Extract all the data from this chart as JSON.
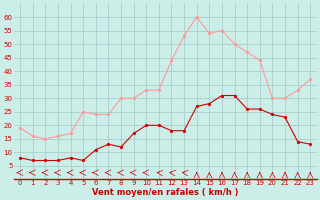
{
  "hours": [
    0,
    1,
    2,
    3,
    4,
    5,
    6,
    7,
    8,
    9,
    10,
    11,
    12,
    13,
    14,
    15,
    16,
    17,
    18,
    19,
    20,
    21,
    22,
    23
  ],
  "wind_avg": [
    8,
    7,
    7,
    7,
    8,
    7,
    11,
    13,
    12,
    17,
    20,
    20,
    18,
    18,
    27,
    28,
    31,
    31,
    26,
    26,
    24,
    23,
    14,
    13
  ],
  "wind_gust": [
    19,
    16,
    15,
    16,
    17,
    25,
    24,
    24,
    30,
    30,
    33,
    33,
    44,
    53,
    60,
    54,
    55,
    50,
    47,
    44,
    30,
    30,
    33,
    37
  ],
  "bg_color": "#cceee8",
  "grid_color": "#aacccc",
  "line_avg_color": "#cc0000",
  "line_gust_color": "#ff9999",
  "marker_size": 2,
  "xlabel": "Vent moyen/en rafales ( km/h )",
  "ylim": [
    0,
    65
  ],
  "yticks": [
    5,
    10,
    15,
    20,
    25,
    30,
    35,
    40,
    45,
    50,
    55,
    60
  ],
  "xlabel_color": "#cc0000",
  "tick_color": "#cc0000",
  "axis_color": "#cc0000",
  "title_color": "#cc0000"
}
